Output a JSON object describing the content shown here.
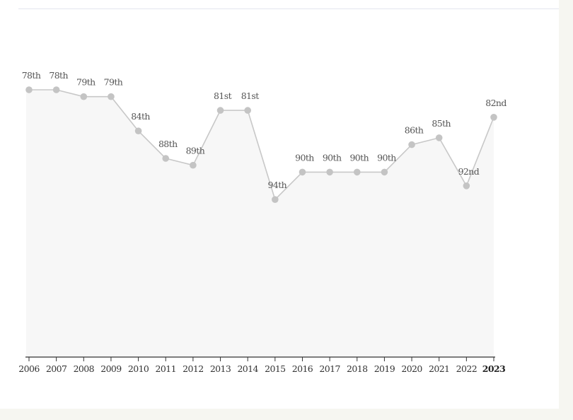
{
  "chart_data": {
    "type": "area",
    "title": "",
    "xlabel": "",
    "ylabel": "",
    "y_inverted": true,
    "grid": false,
    "x": [
      "2006",
      "2007",
      "2008",
      "2009",
      "2010",
      "2011",
      "2012",
      "2013",
      "2014",
      "2015",
      "2016",
      "2017",
      "2018",
      "2019",
      "2020",
      "2021",
      "2022",
      "2023"
    ],
    "values": [
      78,
      78,
      79,
      79,
      84,
      88,
      89,
      81,
      81,
      94,
      90,
      90,
      90,
      90,
      86,
      85,
      92,
      82
    ],
    "labels": [
      "78th",
      "78th",
      "79th",
      "79th",
      "84th",
      "88th",
      "89th",
      "81st",
      "81st",
      "94th",
      "90th",
      "90th",
      "90th",
      "90th",
      "86th",
      "85th",
      "92nd",
      "82nd"
    ],
    "highlight_x": "2023",
    "colors": {
      "line": "#c8c8c8",
      "marker": "#c4c4c4",
      "fill": "#f7f7f7",
      "axis": "#333333"
    }
  }
}
